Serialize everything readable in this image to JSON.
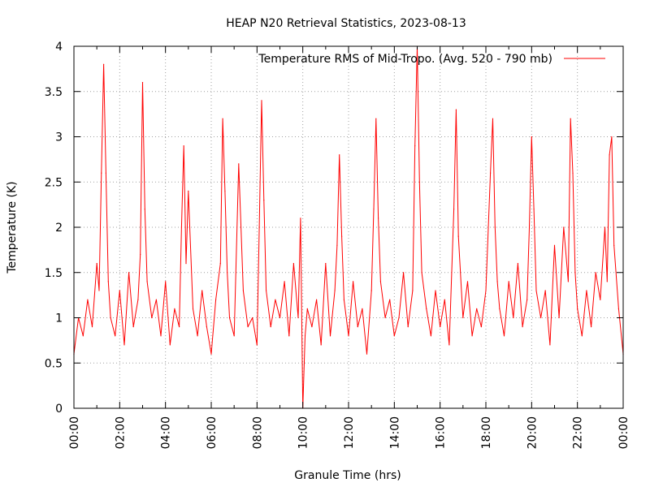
{
  "chart_data": {
    "type": "line",
    "title": "HEAP N20 Retrieval Statistics, 2023-08-13",
    "xlabel": "Granule Time (hrs)",
    "ylabel": "Temperature (K)",
    "xlim": [
      "00:00",
      "24:00"
    ],
    "ylim": [
      0,
      4
    ],
    "x_tick_labels": [
      "00:00",
      "02:00",
      "04:00",
      "06:00",
      "08:00",
      "10:00",
      "12:00",
      "14:00",
      "16:00",
      "18:00",
      "20:00",
      "22:00",
      "00:00"
    ],
    "y_tick_labels": [
      "0",
      "0.5",
      "1",
      "1.5",
      "2",
      "2.5",
      "3",
      "3.5",
      "4"
    ],
    "grid": true,
    "legend_position": "top-right",
    "series": [
      {
        "name": "Temperature RMS of Mid-Tropo. (Avg. 520 - 790 mb)",
        "color": "#ff0000",
        "x_unit": "hours",
        "x": [
          0.0,
          0.2,
          0.4,
          0.6,
          0.8,
          1.0,
          1.1,
          1.2,
          1.3,
          1.4,
          1.5,
          1.6,
          1.8,
          2.0,
          2.2,
          2.4,
          2.6,
          2.8,
          2.9,
          3.0,
          3.1,
          3.2,
          3.4,
          3.6,
          3.8,
          4.0,
          4.2,
          4.4,
          4.6,
          4.7,
          4.8,
          4.9,
          5.0,
          5.2,
          5.4,
          5.6,
          5.8,
          6.0,
          6.2,
          6.4,
          6.5,
          6.6,
          6.7,
          6.8,
          7.0,
          7.2,
          7.4,
          7.6,
          7.8,
          8.0,
          8.1,
          8.2,
          8.3,
          8.4,
          8.6,
          8.8,
          9.0,
          9.2,
          9.4,
          9.6,
          9.8,
          9.9,
          10.0,
          10.1,
          10.2,
          10.4,
          10.6,
          10.8,
          11.0,
          11.2,
          11.4,
          11.5,
          11.6,
          11.7,
          11.8,
          12.0,
          12.2,
          12.4,
          12.6,
          12.8,
          13.0,
          13.1,
          13.2,
          13.3,
          13.4,
          13.6,
          13.8,
          14.0,
          14.2,
          14.4,
          14.6,
          14.8,
          14.9,
          15.0,
          15.1,
          15.2,
          15.4,
          15.6,
          15.8,
          16.0,
          16.2,
          16.4,
          16.6,
          16.7,
          16.8,
          17.0,
          17.2,
          17.4,
          17.6,
          17.8,
          18.0,
          18.2,
          18.3,
          18.4,
          18.5,
          18.6,
          18.8,
          19.0,
          19.2,
          19.4,
          19.6,
          19.8,
          19.9,
          20.0,
          20.1,
          20.2,
          20.4,
          20.6,
          20.8,
          21.0,
          21.2,
          21.4,
          21.6,
          21.7,
          21.8,
          21.9,
          22.0,
          22.2,
          22.4,
          22.6,
          22.8,
          23.0,
          23.2,
          23.3,
          23.4,
          23.5,
          23.6,
          23.8,
          24.0
        ],
        "y": [
          0.6,
          1.0,
          0.8,
          1.2,
          0.9,
          1.6,
          1.3,
          2.6,
          3.8,
          2.6,
          1.4,
          1.0,
          0.8,
          1.3,
          0.7,
          1.5,
          0.9,
          1.2,
          1.7,
          3.6,
          2.2,
          1.4,
          1.0,
          1.2,
          0.8,
          1.4,
          0.7,
          1.1,
          0.9,
          2.0,
          2.9,
          1.6,
          2.4,
          1.1,
          0.8,
          1.3,
          0.9,
          0.6,
          1.2,
          1.6,
          3.2,
          2.4,
          1.5,
          1.0,
          0.8,
          2.7,
          1.3,
          0.9,
          1.0,
          0.7,
          2.0,
          3.4,
          2.3,
          1.3,
          0.9,
          1.2,
          1.0,
          1.4,
          0.8,
          1.6,
          1.0,
          2.1,
          0.0,
          0.8,
          1.1,
          0.9,
          1.2,
          0.7,
          1.6,
          0.8,
          1.3,
          1.8,
          2.8,
          1.9,
          1.2,
          0.8,
          1.4,
          0.9,
          1.1,
          0.6,
          1.3,
          2.2,
          3.2,
          2.1,
          1.4,
          1.0,
          1.2,
          0.8,
          1.0,
          1.5,
          0.9,
          1.3,
          2.9,
          4.0,
          2.5,
          1.5,
          1.1,
          0.8,
          1.3,
          0.9,
          1.2,
          0.7,
          2.2,
          3.3,
          1.9,
          1.0,
          1.4,
          0.8,
          1.1,
          0.9,
          1.3,
          2.6,
          3.2,
          2.0,
          1.4,
          1.1,
          0.8,
          1.4,
          1.0,
          1.6,
          0.9,
          1.2,
          2.0,
          3.0,
          2.2,
          1.3,
          1.0,
          1.3,
          0.7,
          1.8,
          1.0,
          2.0,
          1.4,
          3.2,
          2.6,
          1.5,
          1.1,
          0.8,
          1.3,
          0.9,
          1.5,
          1.2,
          2.0,
          1.4,
          2.8,
          3.0,
          1.8,
          1.1,
          0.6
        ]
      }
    ]
  }
}
